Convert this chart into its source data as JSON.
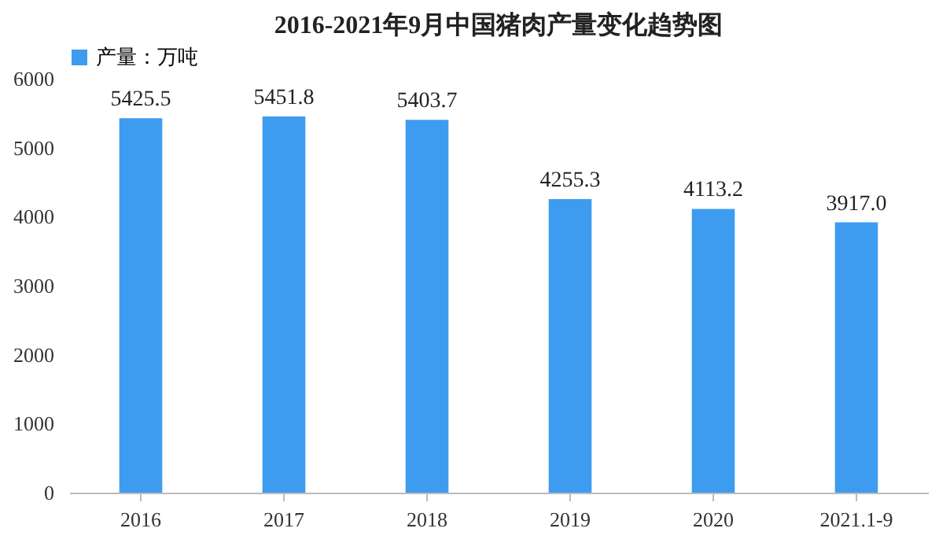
{
  "chart_data": {
    "type": "bar",
    "title": "2016-2021年9月中国猪肉产量变化趋势图",
    "categories": [
      "2016",
      "2017",
      "2018",
      "2019",
      "2020",
      "2021.1-9"
    ],
    "series": [
      {
        "name": "产量：万吨",
        "color": "#3d9cf0",
        "values": [
          5425.5,
          5451.8,
          5403.7,
          4255.3,
          4113.2,
          3917.0
        ]
      }
    ],
    "value_labels": [
      "5425.5",
      "5451.8",
      "5403.7",
      "4255.3",
      "4113.2",
      "3917.0"
    ],
    "ylim": [
      0,
      6000
    ],
    "yticks": [
      0,
      1000,
      2000,
      3000,
      4000,
      5000,
      6000
    ],
    "grid": false,
    "legend": "top"
  }
}
